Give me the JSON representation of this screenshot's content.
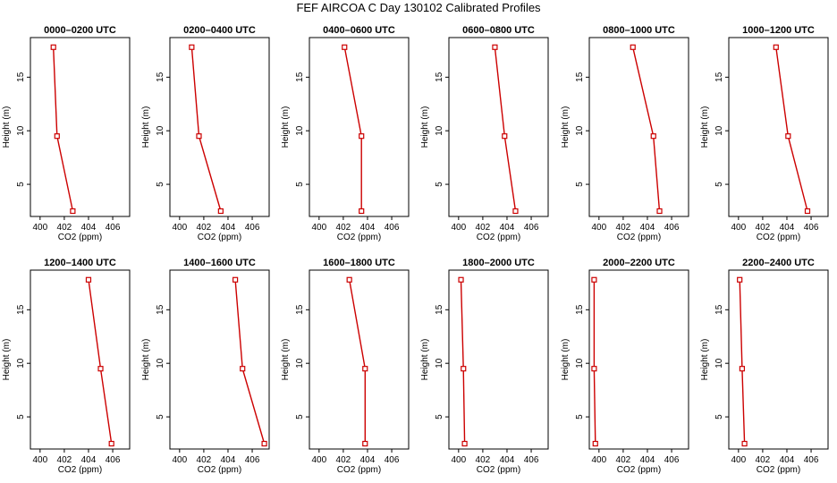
{
  "figure": {
    "title": "FEF AIRCOA C  Day 130102  Calibrated Profiles"
  },
  "chart_data": {
    "type": "line",
    "title": "FEF AIRCOA C  Day 130102  Calibrated Profiles",
    "xlabel": "CO2 (ppm)",
    "ylabel": "Height (m)",
    "xlim": [
      399.2,
      407.4
    ],
    "ylim": [
      2.0,
      18.7
    ],
    "xticks": [
      400,
      402,
      404,
      406
    ],
    "yticks": [
      5,
      10,
      15
    ],
    "line_color": "#cc0000",
    "marker_color": "#cc0000",
    "heights": [
      2.5,
      9.5,
      17.8
    ],
    "panels": [
      {
        "title": "0000–0200 UTC",
        "co2": [
          402.7,
          401.4,
          401.1
        ]
      },
      {
        "title": "0200–0400 UTC",
        "co2": [
          403.4,
          401.6,
          401.0
        ]
      },
      {
        "title": "0400–0600 UTC",
        "co2": [
          403.5,
          403.5,
          402.1
        ]
      },
      {
        "title": "0600–0800 UTC",
        "co2": [
          404.7,
          403.8,
          403.0
        ]
      },
      {
        "title": "0800–1000 UTC",
        "co2": [
          405.0,
          404.5,
          402.8
        ]
      },
      {
        "title": "1000–1200 UTC",
        "co2": [
          405.7,
          404.1,
          403.1
        ]
      },
      {
        "title": "1200–1400 UTC",
        "co2": [
          405.9,
          405.0,
          404.0
        ]
      },
      {
        "title": "1400–1600 UTC",
        "co2": [
          407.0,
          405.2,
          404.6
        ]
      },
      {
        "title": "1600–1800 UTC",
        "co2": [
          403.8,
          403.8,
          402.5
        ]
      },
      {
        "title": "1800–2000 UTC",
        "co2": [
          400.5,
          400.4,
          400.2
        ]
      },
      {
        "title": "2000–2200 UTC",
        "co2": [
          399.7,
          399.6,
          399.6
        ]
      },
      {
        "title": "2200–2400 UTC",
        "co2": [
          400.5,
          400.3,
          400.1
        ]
      }
    ]
  }
}
